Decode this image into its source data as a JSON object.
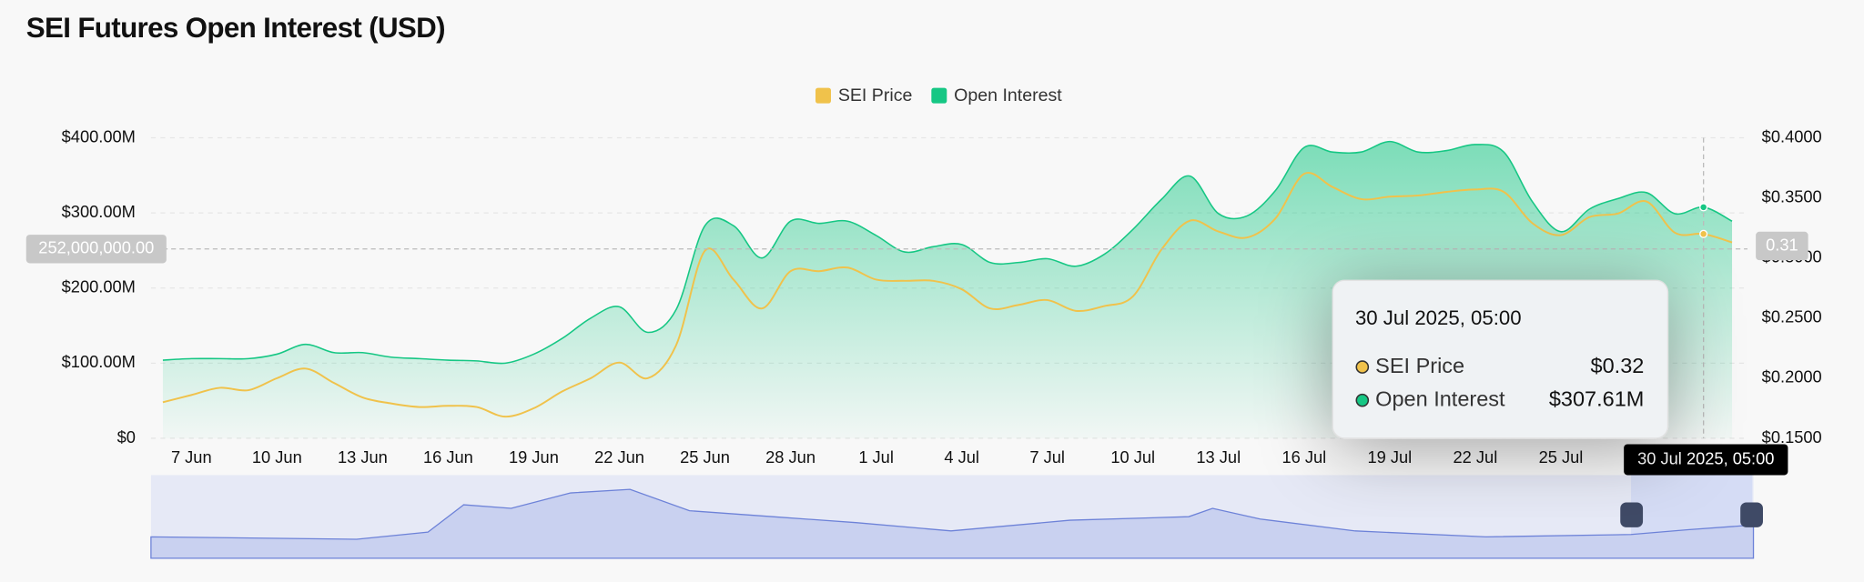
{
  "chart_data": {
    "type": "line",
    "title": "SEI Futures Open Interest (USD)",
    "categories": [
      null,
      "7 Jun",
      null,
      null,
      "10 Jun",
      null,
      null,
      "13 Jun",
      null,
      null,
      "16 Jun",
      null,
      null,
      "19 Jun",
      null,
      null,
      "22 Jun",
      null,
      null,
      "25 Jun",
      null,
      null,
      "28 Jun",
      null,
      null,
      "1 Jul",
      null,
      null,
      "4 Jul",
      null,
      null,
      "7 Jul",
      null,
      null,
      "10 Jul",
      null,
      null,
      "13 Jul",
      null,
      null,
      "16 Jul",
      null,
      null,
      "19 Jul",
      null,
      null,
      "22 Jul",
      null,
      null,
      "25 Jul",
      null,
      null,
      null,
      null,
      null,
      null
    ],
    "series": [
      {
        "name": "SEI Price",
        "color": "#f0c24b",
        "axis": "y2",
        "values": [
          0.18,
          0.186,
          0.192,
          0.19,
          0.2,
          0.208,
          0.196,
          0.184,
          0.179,
          0.176,
          0.177,
          0.176,
          0.168,
          0.175,
          0.189,
          0.2,
          0.213,
          0.2,
          0.228,
          0.306,
          0.282,
          0.258,
          0.289,
          0.289,
          0.292,
          0.282,
          0.281,
          0.281,
          0.274,
          0.258,
          0.261,
          0.265,
          0.256,
          0.26,
          0.268,
          0.307,
          0.331,
          0.322,
          0.317,
          0.333,
          0.37,
          0.359,
          0.349,
          0.351,
          0.352,
          0.355,
          0.357,
          0.355,
          0.329,
          0.319,
          0.334,
          0.337,
          0.347,
          0.321,
          0.32,
          0.313
        ]
      },
      {
        "name": "Open Interest",
        "color": "#16c784",
        "fill": true,
        "values": [
          104000000,
          106000000,
          106000000,
          106000000,
          112000000,
          125000000,
          114000000,
          114000000,
          108000000,
          106000000,
          104000000,
          103000000,
          100000000,
          112000000,
          133000000,
          160000000,
          175000000,
          141000000,
          172000000,
          283000000,
          283000000,
          240000000,
          289000000,
          286000000,
          289000000,
          270000000,
          248000000,
          255000000,
          258000000,
          234000000,
          234000000,
          239000000,
          229000000,
          245000000,
          278000000,
          318000000,
          349000000,
          299000000,
          296000000,
          330000000,
          387000000,
          381000000,
          381000000,
          395000000,
          381000000,
          383000000,
          391000000,
          381000000,
          315000000,
          275000000,
          305000000,
          319000000,
          327000000,
          299000000,
          307610000,
          289000000
        ]
      }
    ],
    "ylim": [
      0,
      400000000
    ],
    "yticks": [
      {
        "value": 0,
        "label": "$0"
      },
      {
        "value": 100000000,
        "label": "$100.00M"
      },
      {
        "value": 200000000,
        "label": "$200.00M"
      },
      {
        "value": 300000000,
        "label": "$300.00M"
      },
      {
        "value": 400000000,
        "label": "$400.00M"
      }
    ],
    "y2lim": [
      0.15,
      0.4
    ],
    "y2ticks": [
      {
        "value": 0.15,
        "label": "$0.1500"
      },
      {
        "value": 0.2,
        "label": "$0.2000"
      },
      {
        "value": 0.25,
        "label": "$0.2500"
      },
      {
        "value": 0.3,
        "label": "$0.3000"
      },
      {
        "value": 0.35,
        "label": "$0.3500"
      },
      {
        "value": 0.4,
        "label": "$0.4000"
      }
    ],
    "grid": true,
    "legend": "top",
    "crosshair": {
      "y": {
        "value": 252000000,
        "label": "252,000,000.00"
      },
      "y2": {
        "value": 0.31,
        "label": "0.31"
      }
    },
    "tooltip": {
      "title": "30 Jul 2025, 05:00",
      "labels": [
        "$0.32",
        "$307.61M"
      ]
    }
  }
}
